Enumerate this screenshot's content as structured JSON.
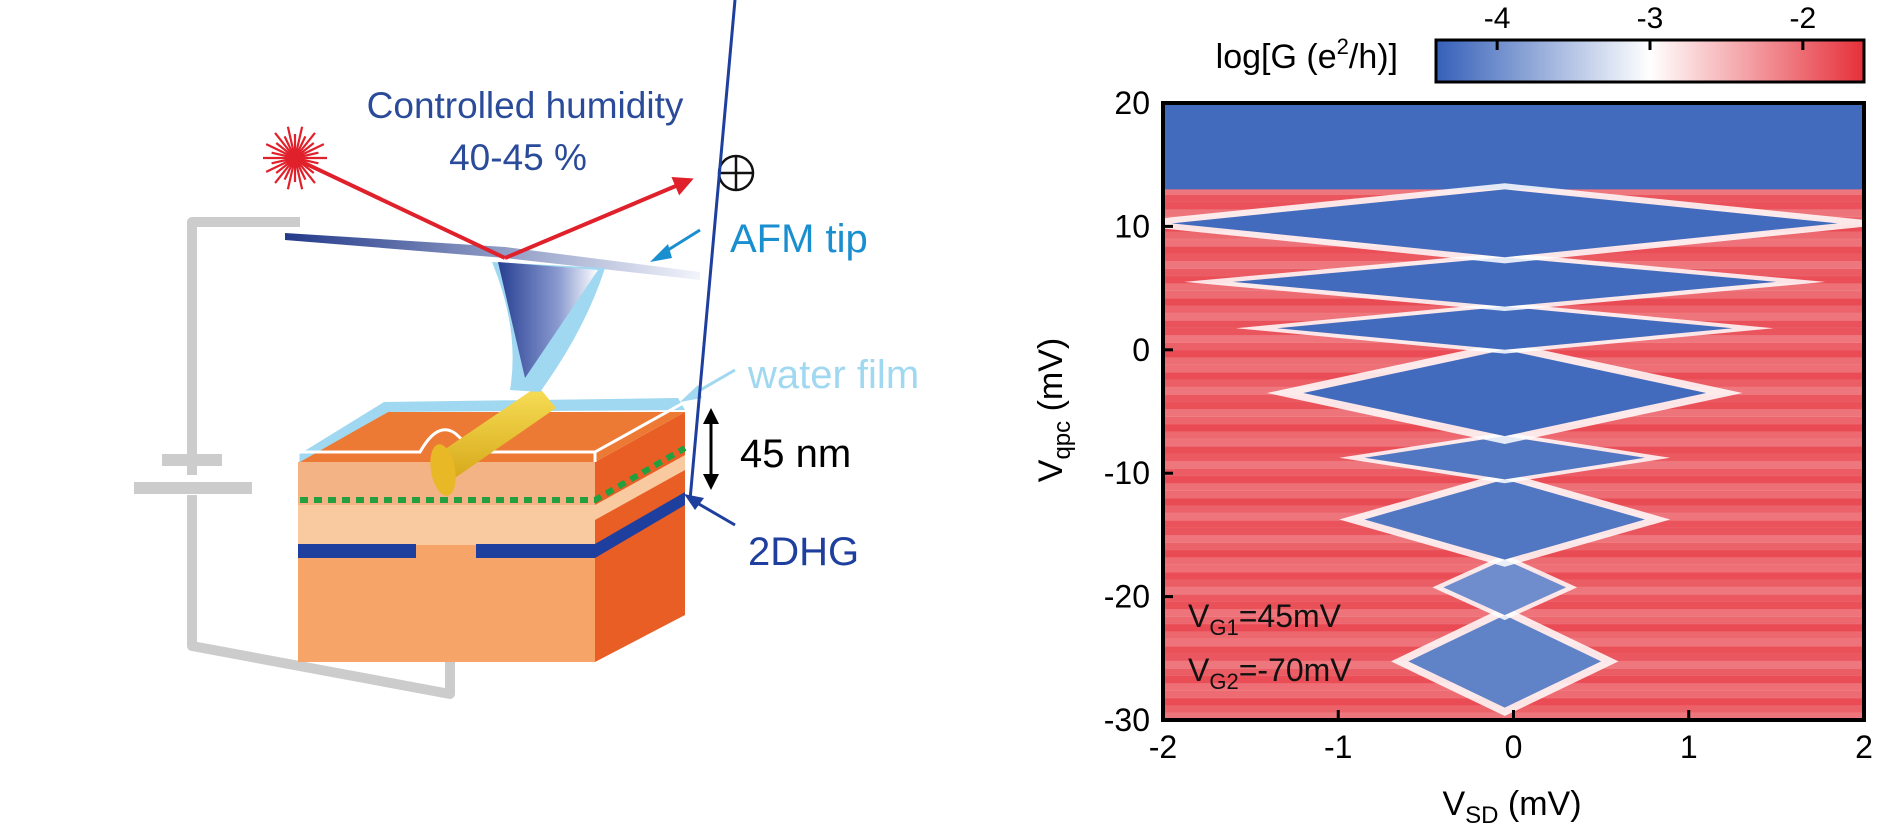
{
  "schematic": {
    "humidity_line1": "Controlled humidity",
    "humidity_line2": "40-45 %",
    "afm_tip_label": "AFM tip",
    "water_film_label": "water film",
    "thickness_label": "45 nm",
    "twodhg_label": "2DHG",
    "colors": {
      "laser": "#e0202a",
      "label_blue": "#2a4a9a",
      "afm_label": "#1a8fd0",
      "water": "#9fd8f0",
      "wire": "#cccccc",
      "cap_top": "#ec7a34",
      "cap_front": "#f6a468",
      "spacer": "#f9c9a0",
      "hole_gas": "#1f3f9e",
      "dots": "#22a040",
      "side": "#e85e25"
    },
    "icons": [
      "laser-burst-icon",
      "photodetector-icon",
      "battery-icon"
    ]
  },
  "chart_data": {
    "type": "heatmap",
    "title": "",
    "xlabel": "V",
    "xlabel_sub": "SD",
    "xlabel_unit": " (mV)",
    "ylabel": "V",
    "ylabel_sub": "qpc",
    "ylabel_unit": " (mV)",
    "xlim": [
      -2,
      2
    ],
    "ylim": [
      -30,
      20
    ],
    "xticks": [
      -2,
      -1,
      0,
      1,
      2
    ],
    "yticks": [
      20,
      10,
      0,
      -10,
      -20,
      -30
    ],
    "colorbar": {
      "label_pre": "log[G (e",
      "label_sup": "2",
      "label_post": "/h)]",
      "range": [
        -4.4,
        -1.6
      ],
      "ticks": [
        -4,
        -3,
        -2
      ],
      "colors": [
        "#3560b8",
        "#ffffff",
        "#e6303a"
      ]
    },
    "annotations": [
      {
        "pre": "V",
        "sub": "G1",
        "post": "=45mV"
      },
      {
        "pre": "V",
        "sub": "G2",
        "post": "=-70mV"
      }
    ],
    "diamonds": [
      {
        "center_x": -0.05,
        "y_low": -29,
        "y_high": -21.5,
        "half_width": 0.55,
        "level": -4.1
      },
      {
        "center_x": -0.05,
        "y_low": -21.5,
        "y_high": -17,
        "half_width": 0.35,
        "level": -4.0
      },
      {
        "center_x": -0.05,
        "y_low": -17,
        "y_high": -10.5,
        "half_width": 0.8,
        "level": -4.2
      },
      {
        "center_x": -0.05,
        "y_low": -10.5,
        "y_high": -7,
        "half_width": 0.8,
        "level": -4.2
      },
      {
        "center_x": -0.05,
        "y_low": -7,
        "y_high": 0,
        "half_width": 1.15,
        "level": -4.3
      },
      {
        "center_x": -0.05,
        "y_low": 0,
        "y_high": 3.5,
        "half_width": 1.3,
        "level": -4.3
      },
      {
        "center_x": -0.05,
        "y_low": 3.5,
        "y_high": 7.5,
        "half_width": 1.55,
        "level": -4.3
      },
      {
        "center_x": -0.05,
        "y_low": 7.5,
        "y_high": 13,
        "half_width": 1.9,
        "level": -4.3
      }
    ],
    "high_gate_region": {
      "y_from": 13,
      "y_to": 20,
      "level": -4.3
    }
  }
}
